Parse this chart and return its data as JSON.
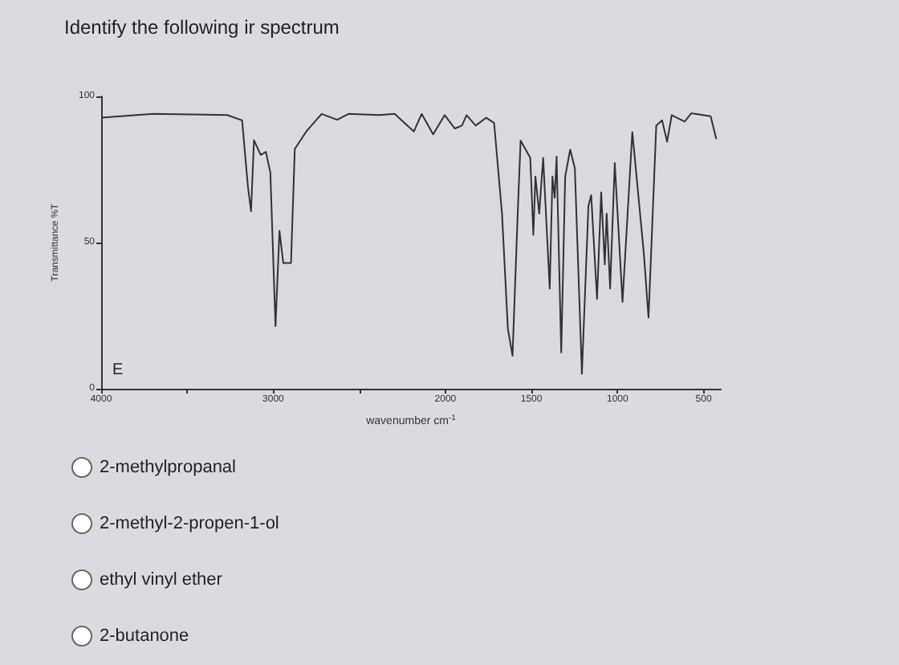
{
  "chart_data": {
    "type": "line",
    "title": "Identify the following ir spectrum",
    "xlabel": "wavenumber cm$^{-1}$",
    "ylabel": "Transmittance %T",
    "annotations": [
      "E",
      "2-methylpropanal",
      "2-methyl-2-propen-1-ol",
      "ethyl vinyl ether",
      "2-butanone"
    ],
    "xlim": [
      4000,
      400
    ],
    "xticks": [
      4000,
      {
        "value": 3500,
        "label": null
      },
      3000,
      {
        "value": 2500,
        "label": null
      },
      2000,
      1500,
      1000,
      500
    ],
    "ylim": [
      0,
      100
    ],
    "yticks": [
      0,
      50,
      100
    ],
    "marker": "none",
    "line_style": "solid",
    "series": [
      {
        "color": "#333333",
        "x": [
          4000,
          3698,
          3267,
          3181,
          3147,
          3129,
          3112,
          3073,
          3043,
          3017,
          2987,
          2964,
          2942,
          2897,
          2875,
          2808,
          2719,
          2629,
          2563,
          2384,
          2295,
          2183,
          2138,
          2071,
          2004,
          1945,
          1904,
          1877,
          1824,
          1763,
          1717,
          1671,
          1637,
          1610,
          1580,
          1563,
          1507,
          1489,
          1477,
          1455,
          1432,
          1394,
          1378,
          1365,
          1354,
          1327,
          1304,
          1275,
          1248,
          1207,
          1169,
          1153,
          1119,
          1095,
          1074,
          1063,
          1043,
          1016,
          971,
          914,
          847,
          820,
          775,
          741,
          712,
          685,
          610,
          572,
          459,
          426
        ],
        "values": [
          92.7,
          94,
          93.6,
          91.8,
          69,
          60.7,
          85,
          80,
          81,
          74,
          21.4,
          54,
          43,
          43,
          82,
          88,
          94,
          92,
          94,
          93.6,
          94,
          88,
          94,
          87,
          93.6,
          89,
          90,
          93.6,
          90,
          92.7,
          90.9,
          59.8,
          20.5,
          11.3,
          59.8,
          84.9,
          79,
          52.6,
          72.6,
          59.9,
          79,
          34.3,
          72.6,
          65.3,
          79.4,
          12.4,
          72.6,
          81.8,
          75.4,
          5.1,
          62.6,
          66.2,
          30.7,
          67.2,
          42.5,
          59.9,
          34.3,
          77.2,
          29.7,
          87.8,
          46.2,
          24.3,
          90,
          91.8,
          84.5,
          93.6,
          91.4,
          94.2,
          93.2,
          85.4
        ]
      }
    ]
  }
}
